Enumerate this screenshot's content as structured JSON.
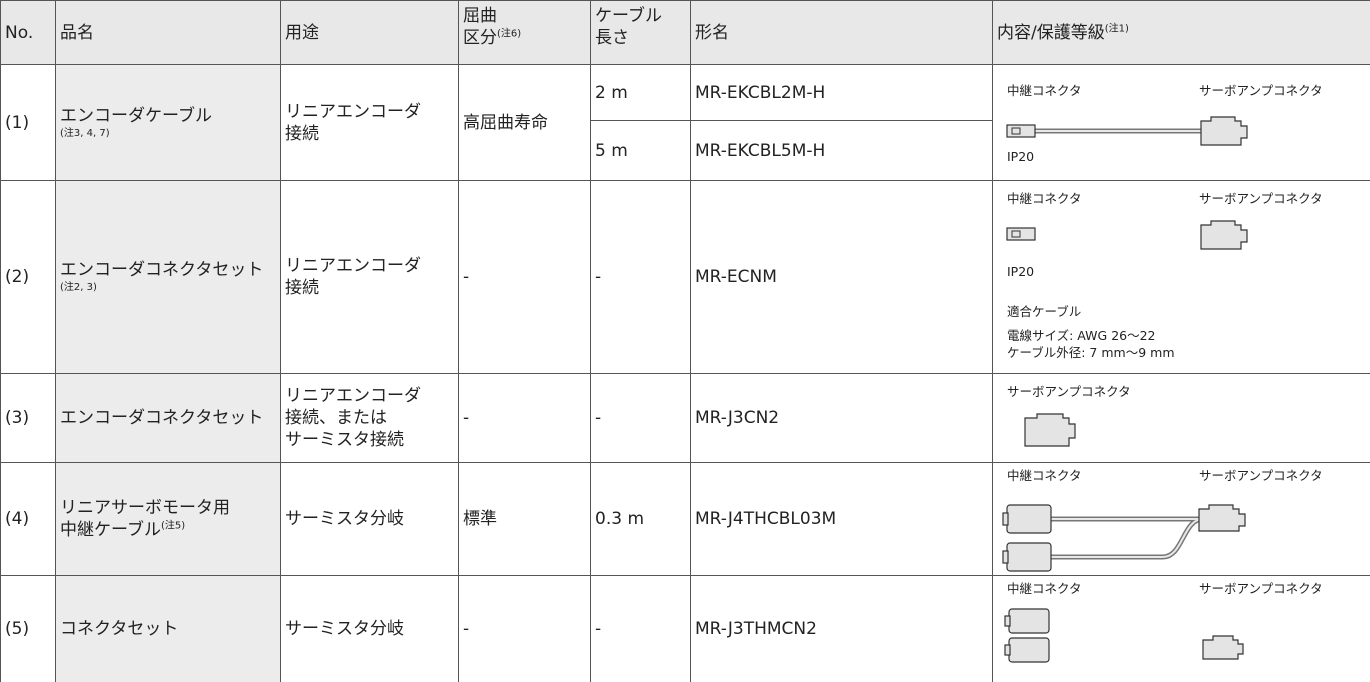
{
  "header": {
    "no": "No.",
    "name": "品名",
    "use": "用途",
    "bend": [
      "屈曲",
      "区分"
    ],
    "bend_note": "(注6)",
    "length": [
      "ケーブル",
      "長さ"
    ],
    "model": "形名",
    "content": "内容/保護等級",
    "content_note": "(注1)"
  },
  "rows": [
    {
      "no": "(1)",
      "name": [
        "エンコーダケーブル"
      ],
      "name_note": "(注3, 4, 7)",
      "use": [
        "リニアエンコーダ",
        "接続"
      ],
      "bend": "高屈曲寿命",
      "variants": [
        {
          "length": "2 m",
          "model": "MR-EKCBL2M-H"
        },
        {
          "length": "5 m",
          "model": "MR-EKCBL5M-H"
        }
      ],
      "content": {
        "left": "中継コネクタ",
        "right": "サーボアンプコネクタ",
        "ip": "IP20"
      }
    },
    {
      "no": "(2)",
      "name": [
        "エンコーダコネクタセット"
      ],
      "name_note": "(注2, 3)",
      "use": [
        "リニアエンコーダ",
        "接続"
      ],
      "bend": "-",
      "length": "-",
      "model": "MR-ECNM",
      "content": {
        "left": "中継コネクタ",
        "right": "サーボアンプコネクタ",
        "ip": "IP20",
        "cable_title": "適合ケーブル",
        "wire_size": "電線サイズ: AWG 26～22",
        "outer_dia": "ケーブル外径: 7 mm～9 mm"
      }
    },
    {
      "no": "(3)",
      "name": [
        "エンコーダコネクタセット"
      ],
      "use": [
        "リニアエンコーダ",
        "接続、または",
        "サーミスタ接続"
      ],
      "bend": "-",
      "length": "-",
      "model": "MR-J3CN2",
      "content": {
        "right": "サーボアンプコネクタ"
      }
    },
    {
      "no": "(4)",
      "name": [
        "リニアサーボモータ用",
        "中継ケーブル"
      ],
      "name_note": "(注5)",
      "use": [
        "サーミスタ分岐"
      ],
      "bend": "標準",
      "length": "0.3 m",
      "model": "MR-J4THCBL03M",
      "content": {
        "left": "中継コネクタ",
        "right": "サーボアンプコネクタ"
      }
    },
    {
      "no": "(5)",
      "name": [
        "コネクタセット"
      ],
      "use": [
        "サーミスタ分岐"
      ],
      "bend": "-",
      "length": "-",
      "model": "MR-J3THMCN2",
      "content": {
        "left": "中継コネクタ",
        "right": "サーボアンプコネクタ"
      }
    }
  ]
}
